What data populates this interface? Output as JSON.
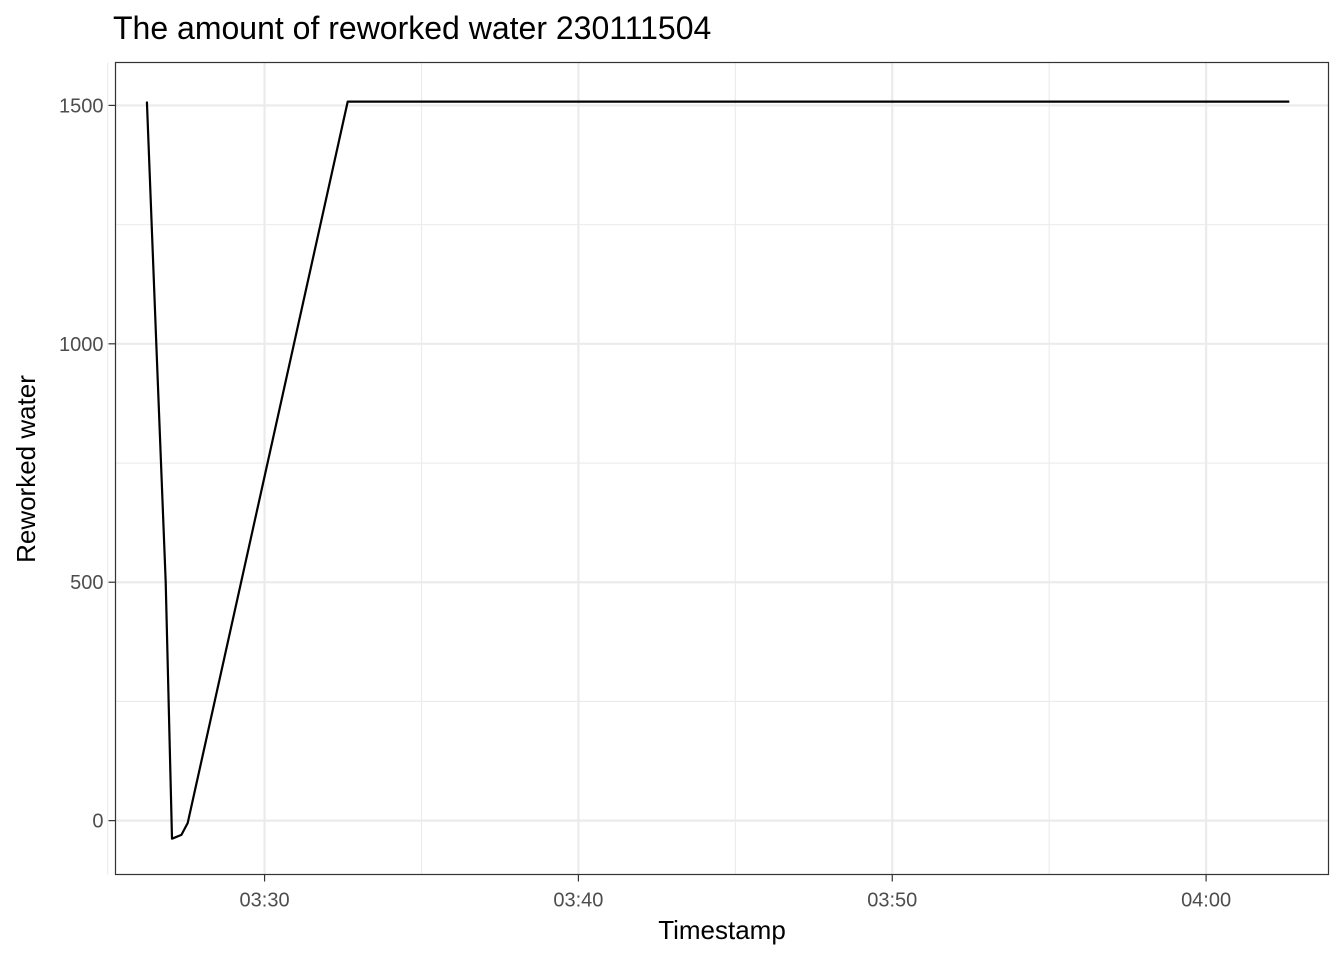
{
  "chart_data": {
    "type": "line",
    "title": "The amount of reworked water 230111504",
    "xlabel": "Timestamp",
    "ylabel": "Reworked water",
    "x_unit": "time (HH:MM)",
    "xlim": [
      "03:25:15",
      "04:03:54"
    ],
    "ylim": [
      -113,
      1590
    ],
    "x_ticks": [
      {
        "value": "03:30",
        "label": "03:30"
      },
      {
        "value": "03:40",
        "label": "03:40"
      },
      {
        "value": "03:50",
        "label": "03:50"
      },
      {
        "value": "04:00",
        "label": "04:00"
      }
    ],
    "y_ticks": [
      {
        "value": 0,
        "label": "0"
      },
      {
        "value": 500,
        "label": "500"
      },
      {
        "value": 1000,
        "label": "1000"
      },
      {
        "value": 1500,
        "label": "1500"
      }
    ],
    "x_minor_ticks": [
      "03:25",
      "03:35",
      "03:45",
      "03:55"
    ],
    "y_minor_ticks": [
      250,
      750,
      1250
    ],
    "grid": true,
    "legend": "none",
    "series": [
      {
        "color": "#000000",
        "points": [
          {
            "x": "03:26:15",
            "y": 1508
          },
          {
            "x": "03:26:33",
            "y": 1000
          },
          {
            "x": "03:26:51",
            "y": 500
          },
          {
            "x": "03:27:03",
            "y": -38
          },
          {
            "x": "03:27:21",
            "y": -30
          },
          {
            "x": "03:27:33",
            "y": -5
          },
          {
            "x": "03:32:39",
            "y": 1508
          },
          {
            "x": "04:02:39",
            "y": 1508
          }
        ]
      }
    ]
  }
}
